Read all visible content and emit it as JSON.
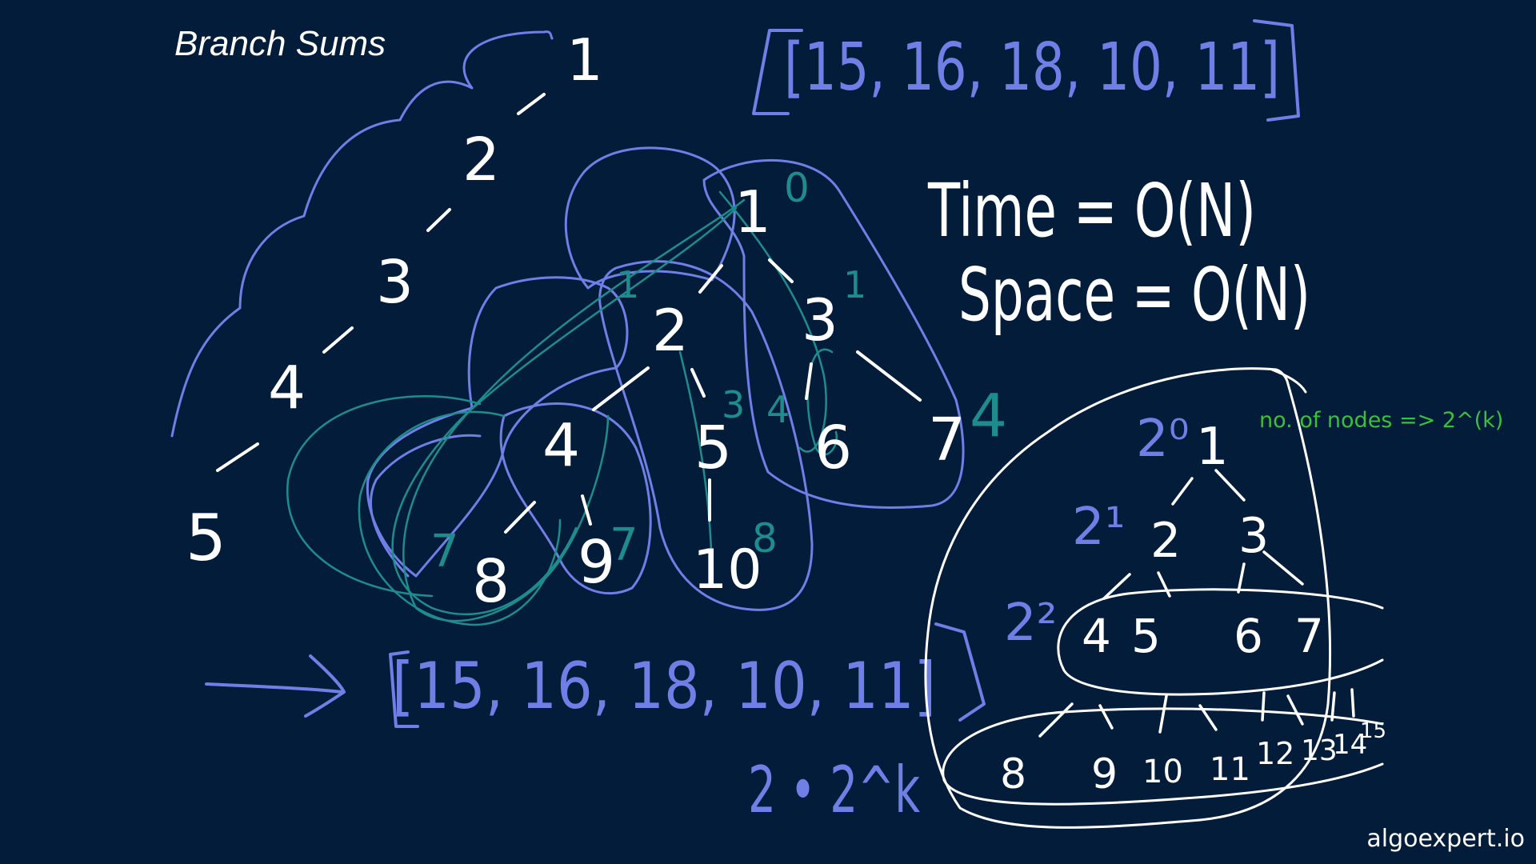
{
  "title": "Branch Sums",
  "brand": "algoexpert.io",
  "colors": {
    "background": "#031c3a",
    "white": "#ffffff",
    "blue": "#6f7fe6",
    "teal": "#1f8c8c",
    "green": "#3cbf3c"
  },
  "nodes_count_note": "no. of nodes => 2^(k)",
  "result_top": "[15, 16, 18, 10, 11]",
  "result_bottom": "[15, 16, 18, 10, 11]",
  "complexity": {
    "time": "Time = O(N)",
    "space": "Space = O(N)"
  },
  "skewed_tree": [
    "1",
    "2",
    "3",
    "4",
    "5"
  ],
  "main_tree": {
    "nodes": [
      "1",
      "2",
      "3",
      "4",
      "5",
      "6",
      "7",
      "8",
      "9",
      "10"
    ],
    "running_sums": [
      "0",
      "1",
      "1",
      "3",
      "4",
      "4",
      "7",
      "7",
      "8"
    ]
  },
  "balanced_tree": {
    "level_labels": [
      "2⁰",
      "2¹",
      "2²"
    ],
    "level0": [
      "1"
    ],
    "level1": [
      "2",
      "3"
    ],
    "level2": [
      "4",
      "5",
      "6",
      "7"
    ],
    "level3": [
      "8",
      "9",
      "10",
      "11",
      "12",
      "13",
      "14",
      "15"
    ]
  },
  "leaf_formula": "2 • 2^k"
}
